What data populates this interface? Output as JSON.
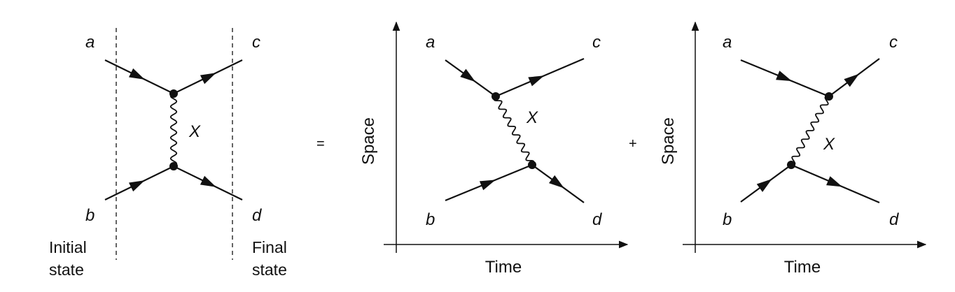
{
  "panel1": {
    "labels": {
      "a": "a",
      "b": "b",
      "c": "c",
      "d": "d",
      "mediator": "X"
    },
    "initial_label": [
      "Initial",
      "state"
    ],
    "final_label": [
      "Final",
      "state"
    ]
  },
  "equals_sign": "=",
  "plus_sign": "+",
  "panel2": {
    "labels": {
      "a": "a",
      "b": "b",
      "c": "c",
      "d": "d",
      "mediator": "X"
    },
    "y_axis": "Space",
    "x_axis": "Time"
  },
  "panel3": {
    "labels": {
      "a": "a",
      "b": "b",
      "c": "c",
      "d": "d",
      "mediator": "X"
    },
    "y_axis": "Space",
    "x_axis": "Time"
  }
}
